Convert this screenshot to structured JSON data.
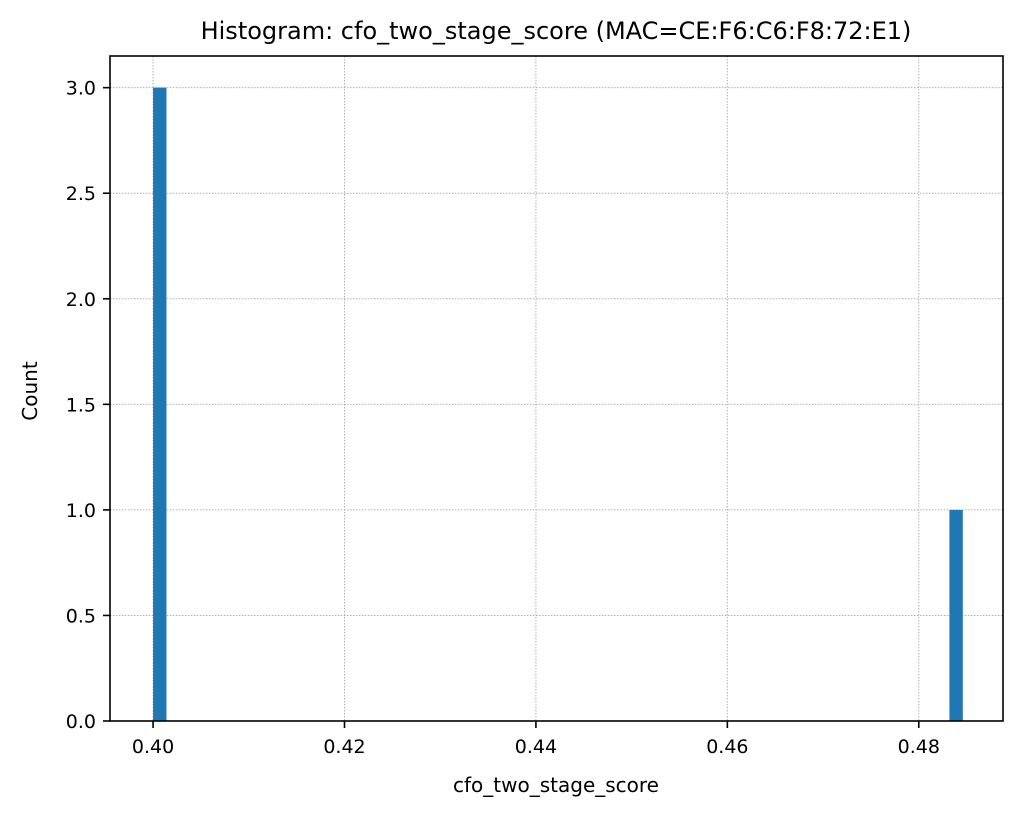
{
  "chart_data": {
    "type": "bar",
    "title": "Histogram: cfo_two_stage_score (MAC=CE:F6:C6:F8:72:E1)",
    "xlabel": "cfo_two_stage_score",
    "ylabel": "Count",
    "xlim": [
      0.3955,
      0.4888
    ],
    "ylim": [
      0,
      3.15
    ],
    "x_ticks": [
      0.4,
      0.42,
      0.44,
      0.46,
      0.48
    ],
    "x_tick_labels": [
      "0.40",
      "0.42",
      "0.44",
      "0.46",
      "0.48"
    ],
    "y_ticks": [
      0.0,
      0.5,
      1.0,
      1.5,
      2.0,
      2.5,
      3.0
    ],
    "y_tick_labels": [
      "0.0",
      "0.5",
      "1.0",
      "1.5",
      "2.0",
      "2.5",
      "3.0"
    ],
    "grid": true,
    "bar_color": "#1f77b4",
    "bins": [
      {
        "x0": 0.4,
        "x1": 0.4014,
        "count": 3
      },
      {
        "x0": 0.4832,
        "x1": 0.4846,
        "count": 1
      }
    ]
  }
}
